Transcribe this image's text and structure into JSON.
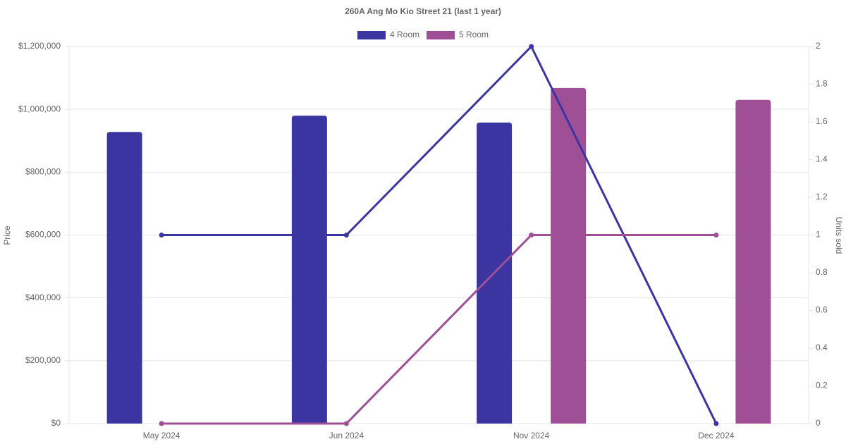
{
  "chart_data": {
    "type": "bar-line",
    "title": "260A Ang Mo Kio Street 21 (last 1 year)",
    "y_label": "Price",
    "y2_label": "Units sold",
    "categories": [
      "May 2024",
      "Jun 2024",
      "Nov 2024",
      "Dec 2024"
    ],
    "series": [
      {
        "name": "4 Room",
        "color": "#3a35a0",
        "values": [
          928000,
          980000,
          958000,
          null
        ],
        "units_sold": [
          1,
          1,
          2,
          0
        ],
        "axis_units": "y2"
      },
      {
        "name": "5 Room",
        "color": "#9e4f96",
        "values": [
          null,
          null,
          1068000,
          1030000
        ],
        "units_sold": [
          0,
          0,
          1,
          1
        ],
        "axis_units": "y2"
      }
    ],
    "ylim": [
      0,
      1200000
    ],
    "yticks": [
      {
        "value": 0,
        "label": "$0"
      },
      {
        "value": 200000,
        "label": "$200,000"
      },
      {
        "value": 400000,
        "label": "$400,000"
      },
      {
        "value": 600000,
        "label": "$600,000"
      },
      {
        "value": 800000,
        "label": "$800,000"
      },
      {
        "value": 1000000,
        "label": "$1,000,000"
      },
      {
        "value": 1200000,
        "label": "$1,200,000"
      }
    ],
    "y2lim": [
      0,
      2
    ],
    "y2ticks": [
      0,
      0.2,
      0.4,
      0.6,
      0.8,
      1,
      1.2,
      1.4,
      1.6,
      1.8,
      2
    ],
    "grid": true,
    "legend": "top"
  }
}
